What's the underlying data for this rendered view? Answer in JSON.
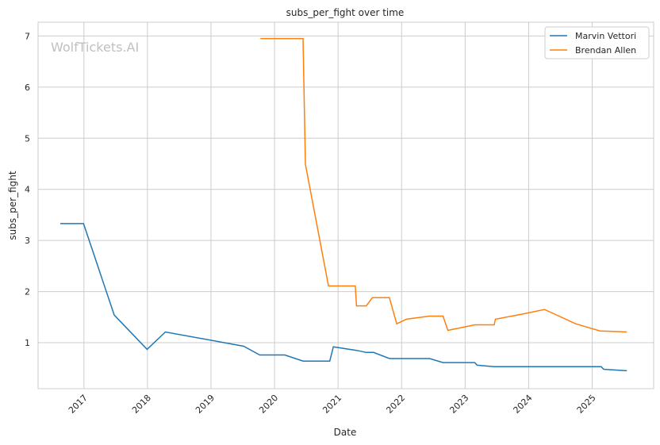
{
  "watermark": "WolfTickets.AI",
  "chart_data": {
    "type": "line",
    "title": "subs_per_fight over time",
    "xlabel": "Date",
    "ylabel": "subs_per_fight",
    "xlim": [
      "2016-04-12",
      "2025-12-20"
    ],
    "ylim": [
      0.1,
      7.27
    ],
    "x_ticks": [
      "2017",
      "2018",
      "2019",
      "2020",
      "2021",
      "2022",
      "2023",
      "2024",
      "2025"
    ],
    "y_ticks": [
      1,
      2,
      3,
      4,
      5,
      6,
      7
    ],
    "grid": true,
    "legend": "top-right",
    "series": [
      {
        "name": "Marvin Vettori",
        "color": "#1f77b4",
        "x": [
          "2016-08-18",
          "2016-12-30",
          "2017-06-24",
          "2017-12-30",
          "2018-04-14",
          "2019-07-08",
          "2019-10-08",
          "2020-02-29",
          "2020-06-13",
          "2020-11-14",
          "2020-12-05",
          "2021-04-17",
          "2021-06-12",
          "2021-07-24",
          "2021-10-23",
          "2022-06-11",
          "2022-08-27",
          "2023-02-25",
          "2023-03-11",
          "2023-06-17",
          "2025-02-22",
          "2025-03-08",
          "2025-07-19"
        ],
        "y": [
          3.33,
          3.33,
          1.54,
          0.87,
          1.21,
          0.93,
          0.76,
          0.76,
          0.64,
          0.64,
          0.92,
          0.85,
          0.81,
          0.81,
          0.69,
          0.69,
          0.61,
          0.61,
          0.56,
          0.53,
          0.53,
          0.48,
          0.45
        ]
      },
      {
        "name": "Brendan Allen",
        "color": "#ff7f0e",
        "x": [
          "2019-10-12",
          "2020-06-13",
          "2020-06-27",
          "2020-11-07",
          "2021-04-10",
          "2021-04-17",
          "2021-06-12",
          "2021-07-17",
          "2021-10-23",
          "2021-12-04",
          "2022-01-29",
          "2022-06-11",
          "2022-08-27",
          "2022-09-24",
          "2023-02-25",
          "2023-06-17",
          "2023-06-24",
          "2023-11-11",
          "2024-04-01",
          "2024-09-28",
          "2025-02-15",
          "2025-07-19"
        ],
        "y": [
          6.95,
          6.95,
          4.49,
          2.11,
          2.11,
          1.72,
          1.72,
          1.88,
          1.88,
          1.37,
          1.46,
          1.52,
          1.52,
          1.24,
          1.35,
          1.35,
          1.46,
          1.55,
          1.65,
          1.37,
          1.23,
          1.21
        ]
      }
    ]
  }
}
